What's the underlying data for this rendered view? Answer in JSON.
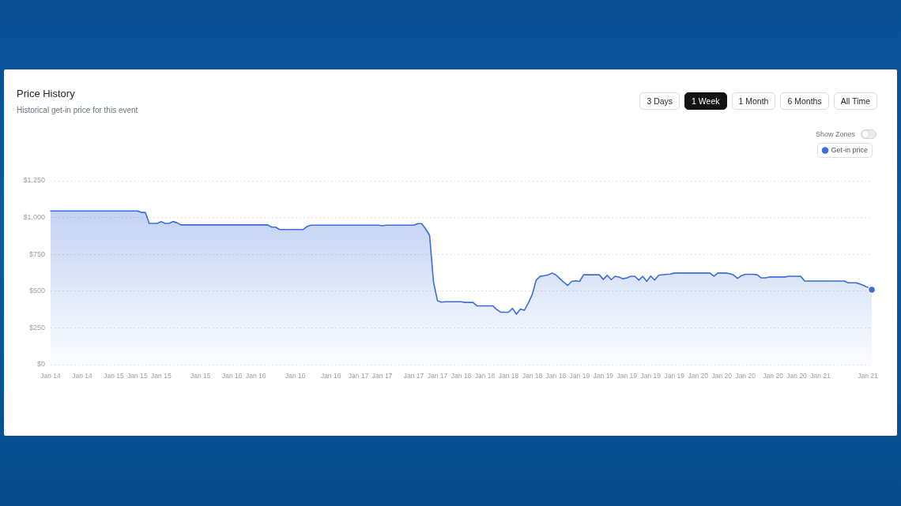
{
  "chart_data": {
    "type": "area",
    "title": "Price History",
    "subtitle": "Historical get-in price for this event",
    "annotations": [
      "3 Days",
      "1 Week",
      "1 Month",
      "6 Months",
      "All Time",
      "Show Zones"
    ],
    "categories": [
      "Jan 14",
      null,
      null,
      null,
      null,
      null,
      null,
      null,
      "Jan 14",
      null,
      null,
      null,
      null,
      null,
      null,
      null,
      "Jan 15",
      null,
      null,
      null,
      null,
      null,
      "Jan 15",
      null,
      null,
      null,
      null,
      null,
      "Jan 15",
      null,
      null,
      null,
      null,
      null,
      null,
      null,
      null,
      null,
      "Jan 15",
      null,
      null,
      null,
      null,
      null,
      null,
      null,
      "Jan 16",
      null,
      null,
      null,
      null,
      null,
      "Jan 16",
      null,
      null,
      null,
      null,
      null,
      null,
      null,
      null,
      null,
      "Jan 16",
      null,
      null,
      null,
      null,
      null,
      null,
      null,
      null,
      "Jan 16",
      null,
      null,
      null,
      null,
      null,
      null,
      "Jan 17",
      null,
      null,
      null,
      null,
      null,
      "Jan 17",
      null,
      null,
      null,
      null,
      null,
      null,
      null,
      "Jan 17",
      null,
      null,
      null,
      null,
      null,
      "Jan 17",
      null,
      null,
      null,
      null,
      null,
      "Jan 18",
      null,
      null,
      null,
      null,
      null,
      "Jan 18",
      null,
      null,
      null,
      null,
      null,
      "Jan 18",
      null,
      null,
      null,
      null,
      null,
      "Jan 18",
      null,
      null,
      null,
      null,
      null,
      "Jan 18",
      null,
      null,
      null,
      null,
      null,
      "Jan 19",
      null,
      null,
      null,
      null,
      null,
      "Jan 19",
      null,
      null,
      null,
      null,
      null,
      "Jan 19",
      null,
      null,
      null,
      null,
      null,
      "Jan 19",
      null,
      null,
      null,
      null,
      null,
      "Jan 19",
      null,
      null,
      null,
      null,
      null,
      "Jan 20",
      null,
      null,
      null,
      null,
      null,
      "Jan 20",
      null,
      null,
      null,
      null,
      null,
      "Jan 20",
      null,
      null,
      null,
      null,
      null,
      null,
      "Jan 20",
      null,
      null,
      null,
      null,
      null,
      "Jan 20",
      null,
      null,
      null,
      null,
      null,
      "Jan 21",
      null,
      null,
      null,
      null,
      null,
      null,
      null,
      null,
      null,
      null,
      null,
      "Jan 21",
      null
    ],
    "series": [
      {
        "name": "Get-in price",
        "color": "#3b6cd9",
        "values": [
          1045,
          1045,
          1045,
          1045,
          1045,
          1045,
          1045,
          1045,
          1045,
          1045,
          1045,
          1045,
          1045,
          1045,
          1045,
          1045,
          1045,
          1045,
          1045,
          1045,
          1045,
          1045,
          1045,
          1035,
          1035,
          960,
          960,
          960,
          973,
          960,
          960,
          973,
          965,
          950,
          950,
          950,
          950,
          950,
          950,
          950,
          950,
          950,
          950,
          950,
          950,
          950,
          950,
          950,
          950,
          950,
          950,
          950,
          950,
          950,
          950,
          950,
          935,
          935,
          919,
          919,
          919,
          919,
          919,
          919,
          919,
          940,
          948,
          948,
          948,
          948,
          948,
          948,
          948,
          948,
          948,
          948,
          948,
          948,
          948,
          948,
          948,
          948,
          948,
          948,
          944,
          948,
          948,
          948,
          948,
          948,
          948,
          948,
          948,
          959,
          959,
          923,
          880,
          560,
          435,
          425,
          428,
          428,
          428,
          428,
          428,
          423,
          423,
          423,
          400,
          400,
          400,
          400,
          400,
          375,
          357,
          357,
          357,
          383,
          343,
          378,
          370,
          419,
          477,
          575,
          600,
          605,
          610,
          623,
          610,
          584,
          560,
          539,
          566,
          570,
          566,
          611,
          611,
          611,
          611,
          611,
          580,
          608,
          578,
          601,
          595,
          584,
          590,
          601,
          601,
          575,
          601,
          566,
          603,
          575,
          608,
          612,
          614,
          616,
          623,
          623,
          623,
          623,
          623,
          623,
          623,
          623,
          623,
          623,
          601,
          623,
          623,
          623,
          618,
          610,
          587,
          605,
          614,
          614,
          614,
          611,
          590,
          590,
          596,
          596,
          596,
          596,
          596,
          601,
          601,
          601,
          601,
          569,
          569,
          569,
          569,
          569,
          569,
          569,
          569,
          569,
          569,
          569,
          557,
          557,
          557,
          548,
          538,
          525,
          509
        ]
      }
    ],
    "ylim": [
      0,
      1250
    ],
    "yticks": [
      {
        "value": 0,
        "label": "$0"
      },
      {
        "value": 250,
        "label": "$250"
      },
      {
        "value": 500,
        "label": "$500"
      },
      {
        "value": 750,
        "label": "$750"
      },
      {
        "value": 1000,
        "label": "$1,000"
      },
      {
        "value": 1250,
        "label": "$1,250"
      }
    ],
    "grid": "y",
    "legend": "top right"
  }
}
